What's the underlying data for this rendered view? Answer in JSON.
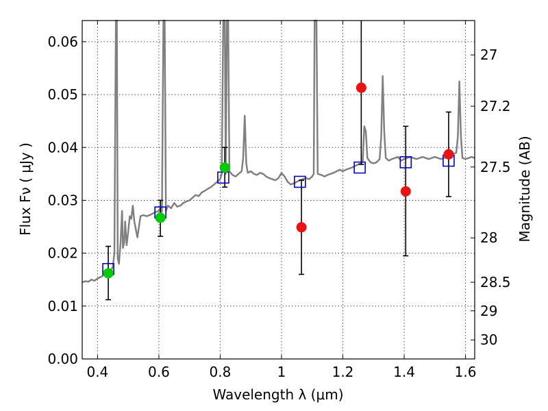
{
  "chart_data": {
    "type": "scatter",
    "xlabel": "Wavelength  λ (μm)",
    "ylabel": "Flux  Fν  ( μJy )",
    "ylabel_right": "Magnitude (AB)",
    "xlim": [
      0.35,
      1.63
    ],
    "ylim": [
      0.0,
      0.064
    ],
    "grid": true,
    "x_ticks": [
      {
        "value": 0.4,
        "label": "0.4"
      },
      {
        "value": 0.6,
        "label": "0.6"
      },
      {
        "value": 0.8,
        "label": "0.8"
      },
      {
        "value": 1.0,
        "label": "1"
      },
      {
        "value": 1.2,
        "label": "1.2"
      },
      {
        "value": 1.4,
        "label": "1.4"
      },
      {
        "value": 1.6,
        "label": "1.6"
      }
    ],
    "y_ticks": [
      {
        "value": 0.0,
        "label": "0.00"
      },
      {
        "value": 0.01,
        "label": "0.01"
      },
      {
        "value": 0.02,
        "label": "0.02"
      },
      {
        "value": 0.03,
        "label": "0.03"
      },
      {
        "value": 0.04,
        "label": "0.04"
      },
      {
        "value": 0.05,
        "label": "0.05"
      },
      {
        "value": 0.06,
        "label": "0.06"
      }
    ],
    "right_ticks": [
      {
        "label": "27",
        "flux": 0.0575
      },
      {
        "label": "27.2",
        "flux": 0.0478
      },
      {
        "label": "27.5",
        "flux": 0.0363
      },
      {
        "label": "28",
        "flux": 0.0229
      },
      {
        "label": "28.5",
        "flux": 0.0145
      },
      {
        "label": "29",
        "flux": 0.0091
      },
      {
        "label": "30",
        "flux": 0.0036
      }
    ],
    "colors": {
      "spectrum": "#808080",
      "model": "#0000cc",
      "detection": "#00cc00",
      "nondetection": "#ee1111",
      "errorbar": "#000000"
    },
    "spectrum": [
      [
        0.35,
        0.0145
      ],
      [
        0.36,
        0.0147
      ],
      [
        0.37,
        0.0146
      ],
      [
        0.38,
        0.015
      ],
      [
        0.39,
        0.0148
      ],
      [
        0.4,
        0.0152
      ],
      [
        0.41,
        0.0155
      ],
      [
        0.42,
        0.0158
      ],
      [
        0.43,
        0.016
      ],
      [
        0.44,
        0.0163
      ],
      [
        0.445,
        0.0168
      ],
      [
        0.45,
        0.0175
      ],
      [
        0.455,
        0.02
      ],
      [
        0.46,
        0.064
      ],
      [
        0.463,
        0.064
      ],
      [
        0.466,
        0.019
      ],
      [
        0.47,
        0.018
      ],
      [
        0.475,
        0.022
      ],
      [
        0.48,
        0.028
      ],
      [
        0.483,
        0.021
      ],
      [
        0.487,
        0.022
      ],
      [
        0.49,
        0.026
      ],
      [
        0.495,
        0.0215
      ],
      [
        0.5,
        0.024
      ],
      [
        0.505,
        0.027
      ],
      [
        0.51,
        0.0265
      ],
      [
        0.515,
        0.029
      ],
      [
        0.52,
        0.026
      ],
      [
        0.53,
        0.023
      ],
      [
        0.54,
        0.027
      ],
      [
        0.55,
        0.0272
      ],
      [
        0.56,
        0.027
      ],
      [
        0.57,
        0.0272
      ],
      [
        0.58,
        0.0275
      ],
      [
        0.59,
        0.0278
      ],
      [
        0.6,
        0.028
      ],
      [
        0.605,
        0.0285
      ],
      [
        0.61,
        0.0278
      ],
      [
        0.615,
        0.064
      ],
      [
        0.619,
        0.064
      ],
      [
        0.623,
        0.028
      ],
      [
        0.63,
        0.029
      ],
      [
        0.64,
        0.0285
      ],
      [
        0.65,
        0.0295
      ],
      [
        0.66,
        0.0288
      ],
      [
        0.67,
        0.029
      ],
      [
        0.68,
        0.0295
      ],
      [
        0.69,
        0.0298
      ],
      [
        0.7,
        0.03
      ],
      [
        0.71,
        0.0305
      ],
      [
        0.72,
        0.031
      ],
      [
        0.73,
        0.0308
      ],
      [
        0.74,
        0.0315
      ],
      [
        0.75,
        0.0318
      ],
      [
        0.76,
        0.0322
      ],
      [
        0.77,
        0.0325
      ],
      [
        0.78,
        0.033
      ],
      [
        0.79,
        0.0335
      ],
      [
        0.8,
        0.034
      ],
      [
        0.805,
        0.035
      ],
      [
        0.81,
        0.064
      ],
      [
        0.815,
        0.064
      ],
      [
        0.818,
        0.035
      ],
      [
        0.822,
        0.064
      ],
      [
        0.826,
        0.064
      ],
      [
        0.83,
        0.0355
      ],
      [
        0.84,
        0.0348
      ],
      [
        0.85,
        0.0345
      ],
      [
        0.86,
        0.035
      ],
      [
        0.87,
        0.0355
      ],
      [
        0.875,
        0.038
      ],
      [
        0.88,
        0.046
      ],
      [
        0.885,
        0.037
      ],
      [
        0.89,
        0.0352
      ],
      [
        0.9,
        0.0355
      ],
      [
        0.91,
        0.035
      ],
      [
        0.92,
        0.0348
      ],
      [
        0.93,
        0.0352
      ],
      [
        0.94,
        0.035
      ],
      [
        0.95,
        0.0345
      ],
      [
        0.96,
        0.0342
      ],
      [
        0.97,
        0.034
      ],
      [
        0.98,
        0.0338
      ],
      [
        0.99,
        0.0342
      ],
      [
        1.0,
        0.0352
      ],
      [
        1.01,
        0.0345
      ],
      [
        1.02,
        0.0335
      ],
      [
        1.03,
        0.033
      ],
      [
        1.04,
        0.0332
      ],
      [
        1.05,
        0.0335
      ],
      [
        1.06,
        0.0338
      ],
      [
        1.07,
        0.034
      ],
      [
        1.08,
        0.0342
      ],
      [
        1.09,
        0.034
      ],
      [
        1.1,
        0.0345
      ],
      [
        1.105,
        0.035
      ],
      [
        1.108,
        0.064
      ],
      [
        1.114,
        0.064
      ],
      [
        1.118,
        0.035
      ],
      [
        1.13,
        0.0348
      ],
      [
        1.14,
        0.0345
      ],
      [
        1.15,
        0.0348
      ],
      [
        1.16,
        0.035
      ],
      [
        1.17,
        0.0352
      ],
      [
        1.18,
        0.0355
      ],
      [
        1.19,
        0.0358
      ],
      [
        1.2,
        0.0355
      ],
      [
        1.21,
        0.0358
      ],
      [
        1.22,
        0.036
      ],
      [
        1.23,
        0.0362
      ],
      [
        1.24,
        0.0365
      ],
      [
        1.25,
        0.0368
      ],
      [
        1.26,
        0.037
      ],
      [
        1.265,
        0.0375
      ],
      [
        1.27,
        0.044
      ],
      [
        1.275,
        0.043
      ],
      [
        1.28,
        0.038
      ],
      [
        1.29,
        0.0372
      ],
      [
        1.3,
        0.037
      ],
      [
        1.31,
        0.0372
      ],
      [
        1.32,
        0.0378
      ],
      [
        1.325,
        0.042
      ],
      [
        1.33,
        0.0535
      ],
      [
        1.335,
        0.043
      ],
      [
        1.34,
        0.038
      ],
      [
        1.35,
        0.0375
      ],
      [
        1.36,
        0.0378
      ],
      [
        1.37,
        0.038
      ],
      [
        1.38,
        0.0382
      ],
      [
        1.39,
        0.0375
      ],
      [
        1.4,
        0.0378
      ],
      [
        1.41,
        0.038
      ],
      [
        1.42,
        0.0382
      ],
      [
        1.43,
        0.038
      ],
      [
        1.44,
        0.0378
      ],
      [
        1.45,
        0.038
      ],
      [
        1.46,
        0.0382
      ],
      [
        1.47,
        0.038
      ],
      [
        1.48,
        0.0378
      ],
      [
        1.49,
        0.038
      ],
      [
        1.5,
        0.0382
      ],
      [
        1.51,
        0.038
      ],
      [
        1.52,
        0.0378
      ],
      [
        1.53,
        0.038
      ],
      [
        1.54,
        0.0382
      ],
      [
        1.55,
        0.0385
      ],
      [
        1.56,
        0.0388
      ],
      [
        1.57,
        0.039
      ],
      [
        1.575,
        0.042
      ],
      [
        1.58,
        0.0525
      ],
      [
        1.585,
        0.042
      ],
      [
        1.59,
        0.038
      ],
      [
        1.6,
        0.0378
      ],
      [
        1.61,
        0.038
      ],
      [
        1.62,
        0.0382
      ],
      [
        1.63,
        0.038
      ]
    ],
    "model_points": [
      {
        "x": 0.435,
        "y": 0.017
      },
      {
        "x": 0.605,
        "y": 0.0277
      },
      {
        "x": 0.81,
        "y": 0.0343
      },
      {
        "x": 1.06,
        "y": 0.0335
      },
      {
        "x": 1.255,
        "y": 0.0362
      },
      {
        "x": 1.405,
        "y": 0.0372
      },
      {
        "x": 1.545,
        "y": 0.0375
      }
    ],
    "detections": [
      {
        "x": 0.435,
        "y": 0.0162,
        "err_low": 0.0112,
        "err_high": 0.0213
      },
      {
        "x": 0.605,
        "y": 0.0267,
        "err_low": 0.0232,
        "err_high": 0.03
      },
      {
        "x": 0.815,
        "y": 0.0362,
        "err_low": 0.0325,
        "err_high": 0.04
      }
    ],
    "nondetections": [
      {
        "x": 1.065,
        "y": 0.0249,
        "err_low": 0.016,
        "err_high": 0.0338
      },
      {
        "x": 1.26,
        "y": 0.0513,
        "err_low": 0.0368,
        "err_high": 0.064
      },
      {
        "x": 1.405,
        "y": 0.0317,
        "err_low": 0.0195,
        "err_high": 0.044
      },
      {
        "x": 1.545,
        "y": 0.0387,
        "err_low": 0.0307,
        "err_high": 0.0467
      }
    ]
  }
}
